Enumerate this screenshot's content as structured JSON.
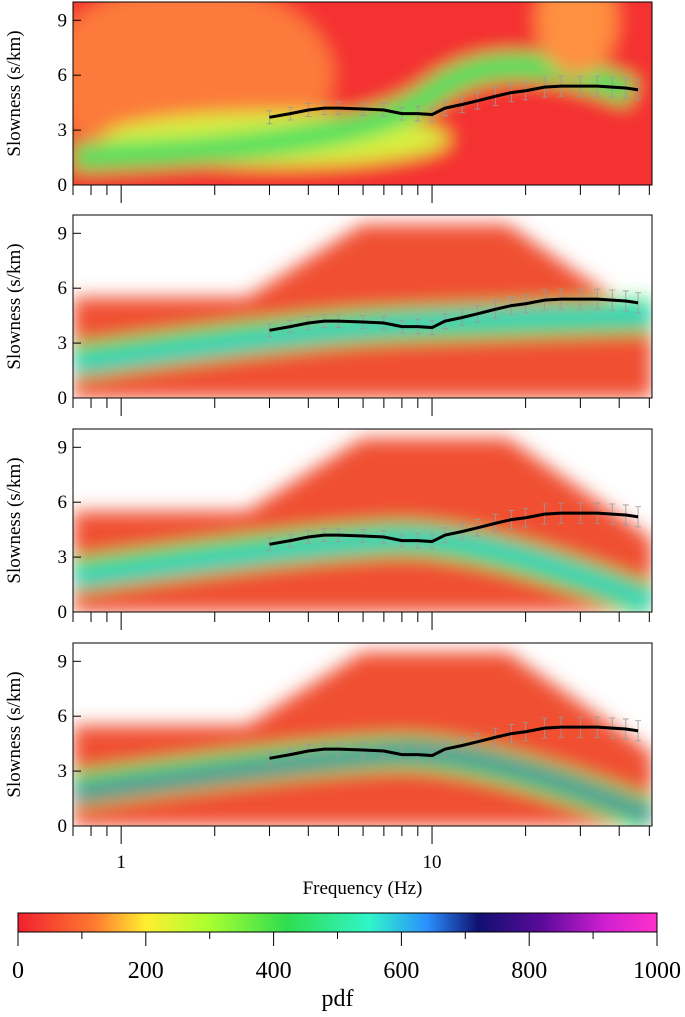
{
  "chart_data": [
    {
      "type": "line",
      "ylabel": "Slowness (s/km)",
      "xscale": "log",
      "xlim": [
        0.7,
        51
      ],
      "ylim": [
        0,
        10
      ],
      "yticks": [
        0,
        3,
        6,
        9
      ],
      "xticks": [
        1,
        10
      ],
      "xminor": [
        0.7,
        0.8,
        0.9,
        2,
        3,
        4,
        5,
        6,
        7,
        8,
        9,
        20,
        30,
        40,
        50
      ],
      "background": "full",
      "x": [
        3,
        3.5,
        4,
        4.5,
        5,
        6,
        7,
        8,
        9,
        10,
        11,
        12.5,
        14,
        16,
        18,
        20,
        23,
        26,
        30,
        34,
        38,
        42,
        46
      ],
      "series": [
        {
          "color": "#000000",
          "values": [
            3.7,
            3.9,
            4.1,
            4.2,
            4.2,
            4.15,
            4.1,
            3.9,
            3.9,
            3.85,
            4.2,
            4.4,
            4.6,
            4.85,
            5.05,
            5.15,
            5.35,
            5.4,
            5.4,
            5.4,
            5.35,
            5.3,
            5.2
          ],
          "errors": [
            0.35,
            0.35,
            0.35,
            0.35,
            0.35,
            0.35,
            0.35,
            0.35,
            0.4,
            0.4,
            0.4,
            0.45,
            0.45,
            0.5,
            0.5,
            0.5,
            0.55,
            0.55,
            0.55,
            0.55,
            0.55,
            0.55,
            0.55
          ]
        }
      ]
    },
    {
      "type": "line",
      "ylabel": "Slowness (s/km)",
      "xscale": "log",
      "xlim": [
        0.7,
        51
      ],
      "ylim": [
        0,
        10
      ],
      "yticks": [
        0,
        3,
        6,
        9
      ],
      "xticks": [
        1,
        10
      ],
      "xminor": [
        0.7,
        0.8,
        0.9,
        2,
        3,
        4,
        5,
        6,
        7,
        8,
        9,
        20,
        30,
        40,
        50
      ],
      "background": "patchy",
      "x": [
        3,
        3.5,
        4,
        4.5,
        5,
        6,
        7,
        8,
        9,
        10,
        11,
        12.5,
        14,
        16,
        18,
        20,
        23,
        26,
        30,
        34,
        38,
        42,
        46
      ],
      "series": [
        {
          "color": "#000000",
          "values": [
            3.7,
            3.9,
            4.1,
            4.2,
            4.2,
            4.15,
            4.1,
            3.9,
            3.9,
            3.85,
            4.2,
            4.4,
            4.6,
            4.85,
            5.05,
            5.15,
            5.35,
            5.4,
            5.4,
            5.4,
            5.35,
            5.3,
            5.2
          ],
          "errors": [
            0.35,
            0.35,
            0.35,
            0.35,
            0.35,
            0.35,
            0.35,
            0.35,
            0.4,
            0.4,
            0.4,
            0.45,
            0.45,
            0.5,
            0.5,
            0.5,
            0.55,
            0.55,
            0.55,
            0.55,
            0.55,
            0.55,
            0.55
          ]
        }
      ]
    },
    {
      "type": "line",
      "ylabel": "Slowness (s/km)",
      "xscale": "log",
      "xlim": [
        0.7,
        51
      ],
      "ylim": [
        0,
        10
      ],
      "yticks": [
        0,
        3,
        6,
        9
      ],
      "xticks": [
        1,
        10
      ],
      "xminor": [
        0.7,
        0.8,
        0.9,
        2,
        3,
        4,
        5,
        6,
        7,
        8,
        9,
        20,
        30,
        40,
        50
      ],
      "background": "patchy",
      "x": [
        3,
        3.5,
        4,
        4.5,
        5,
        6,
        7,
        8,
        9,
        10,
        11,
        12.5,
        14,
        16,
        18,
        20,
        23,
        26,
        30,
        34,
        38,
        42,
        46
      ],
      "series": [
        {
          "color": "#000000",
          "values": [
            3.7,
            3.9,
            4.1,
            4.2,
            4.2,
            4.15,
            4.1,
            3.9,
            3.9,
            3.85,
            4.2,
            4.4,
            4.6,
            4.85,
            5.05,
            5.15,
            5.35,
            5.4,
            5.4,
            5.4,
            5.35,
            5.3,
            5.2
          ],
          "errors": [
            0.35,
            0.35,
            0.35,
            0.35,
            0.35,
            0.35,
            0.35,
            0.35,
            0.4,
            0.4,
            0.4,
            0.45,
            0.45,
            0.5,
            0.5,
            0.5,
            0.55,
            0.55,
            0.55,
            0.55,
            0.55,
            0.55,
            0.55
          ]
        }
      ]
    },
    {
      "type": "line",
      "ylabel": "Slowness (s/km)",
      "xlabel": "Frequency (Hz)",
      "xscale": "log",
      "xlim": [
        0.7,
        51
      ],
      "ylim": [
        0,
        10
      ],
      "yticks": [
        0,
        3,
        6,
        9
      ],
      "xticks": [
        1,
        10
      ],
      "xminor": [
        0.7,
        0.8,
        0.9,
        2,
        3,
        4,
        5,
        6,
        7,
        8,
        9,
        20,
        30,
        40,
        50
      ],
      "background": "patchy",
      "x": [
        3,
        3.5,
        4,
        4.5,
        5,
        6,
        7,
        8,
        9,
        10,
        11,
        12.5,
        14,
        16,
        18,
        20,
        23,
        26,
        30,
        34,
        38,
        42,
        46
      ],
      "series": [
        {
          "color": "#000000",
          "values": [
            3.7,
            3.9,
            4.1,
            4.2,
            4.2,
            4.15,
            4.1,
            3.9,
            3.9,
            3.85,
            4.2,
            4.4,
            4.6,
            4.85,
            5.05,
            5.15,
            5.35,
            5.4,
            5.4,
            5.4,
            5.35,
            5.3,
            5.2
          ],
          "errors": [
            0.35,
            0.35,
            0.35,
            0.35,
            0.35,
            0.35,
            0.35,
            0.35,
            0.4,
            0.4,
            0.4,
            0.45,
            0.45,
            0.5,
            0.5,
            0.5,
            0.55,
            0.55,
            0.55,
            0.55,
            0.55,
            0.55,
            0.55
          ]
        }
      ]
    }
  ],
  "colorbar": {
    "label": "pdf",
    "lim": [
      0,
      1000
    ],
    "ticks": [
      0,
      200,
      400,
      600,
      800,
      1000
    ],
    "minor": [
      100,
      300,
      500,
      700,
      900
    ]
  }
}
